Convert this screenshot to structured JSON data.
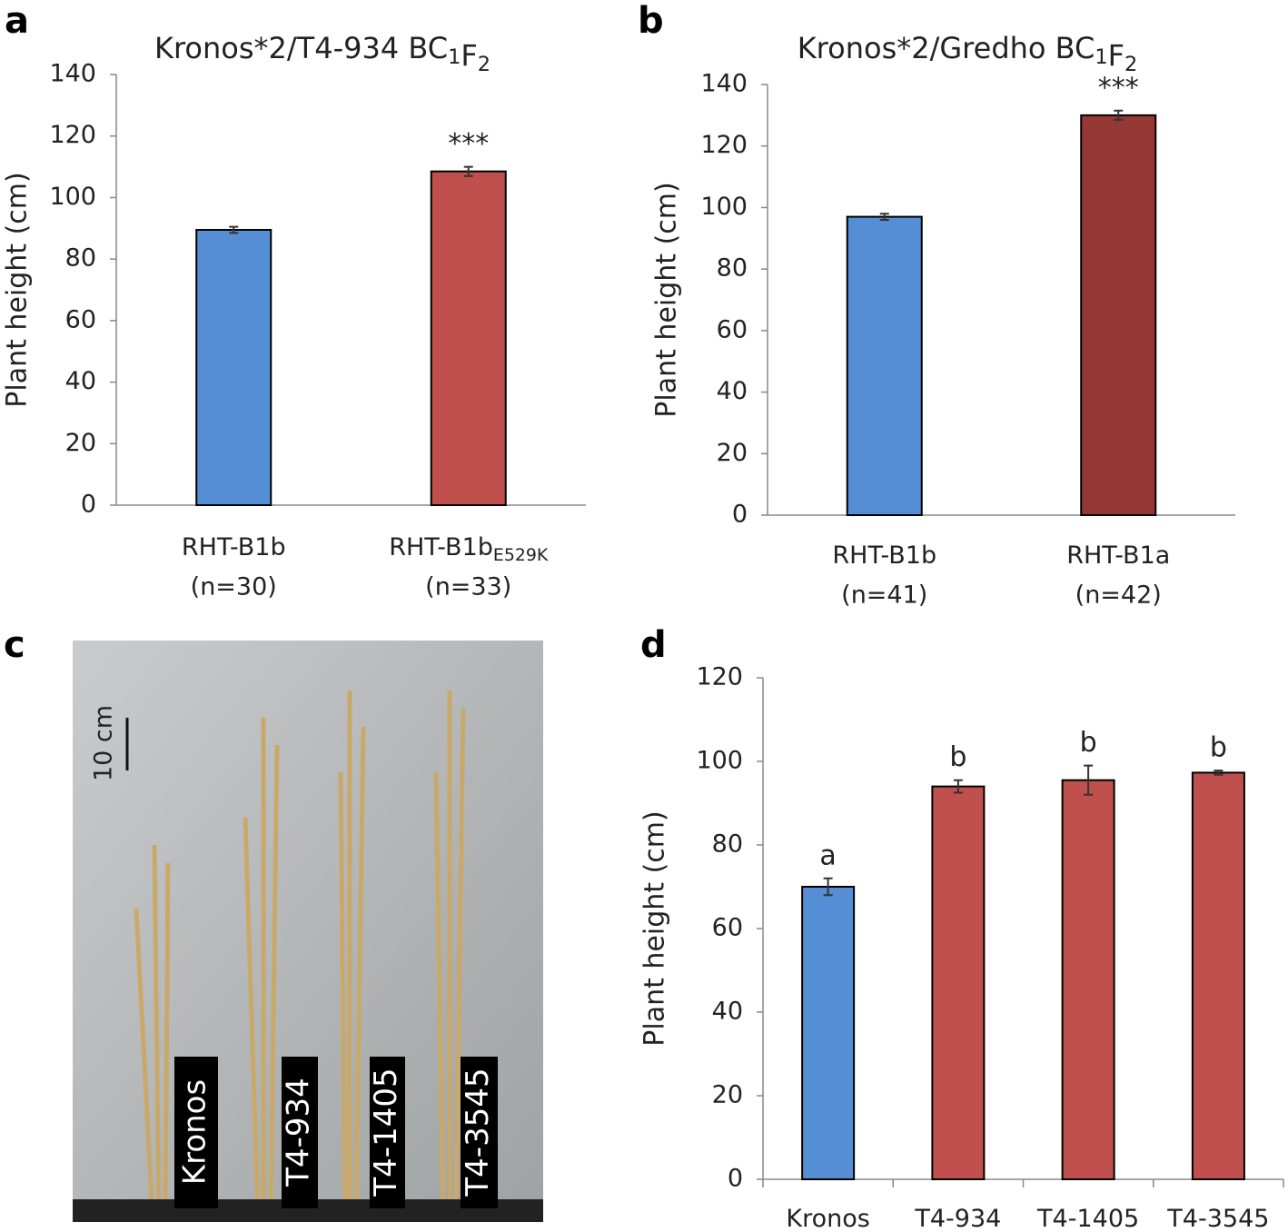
{
  "chart_data": [
    {
      "type": "bar",
      "panel_label": "a",
      "title": [
        "Kronos*2/T4-934 BC",
        {
          "sub": "1"
        },
        "F",
        {
          "sub": "2"
        }
      ],
      "y_label": "Plant height (cm)",
      "categories": [
        [
          "RHT-B1b"
        ],
        [
          "RHT-B1b",
          {
            "sub": "E529K"
          }
        ]
      ],
      "sample_sizes": [
        "(n=30)",
        "(n=33)"
      ],
      "values": [
        89.5,
        108.5
      ],
      "errors": [
        1,
        1.5
      ],
      "annotations": [
        null,
        "***"
      ],
      "colors": [
        "#558ed5",
        "#c0504d"
      ],
      "ylim": [
        0,
        140
      ],
      "yticks": [
        0,
        20,
        40,
        60,
        80,
        100,
        120,
        140
      ],
      "grid": false
    },
    {
      "type": "bar",
      "panel_label": "b",
      "title": [
        "Kronos*2/Gredho BC",
        {
          "sub": "1"
        },
        "F",
        {
          "sub": "2"
        }
      ],
      "y_label": "Plant height (cm)",
      "categories": [
        [
          "RHT-B1b"
        ],
        [
          "RHT-B1a"
        ]
      ],
      "sample_sizes": [
        "(n=41)",
        "(n=42)"
      ],
      "values": [
        97,
        130
      ],
      "errors": [
        1,
        1.5
      ],
      "annotations": [
        null,
        "***"
      ],
      "colors": [
        "#558ed5",
        "#953735"
      ],
      "ylim": [
        0,
        140
      ],
      "yticks": [
        0,
        20,
        40,
        60,
        80,
        100,
        120,
        140
      ],
      "grid": false
    },
    {
      "type": "bar",
      "panel_label": "d",
      "y_label": "Plant height (cm)",
      "categories": [
        [
          "Kronos"
        ],
        [
          "T4-934"
        ],
        [
          "T4-1405"
        ],
        [
          "T4-3545"
        ]
      ],
      "values": [
        70,
        94,
        95.5,
        97.3
      ],
      "errors": [
        2,
        1.5,
        3.5,
        0.5
      ],
      "annotations": [
        "a",
        "b",
        "b",
        "b"
      ],
      "colors": [
        "#558ed5",
        "#c0504d",
        "#c0504d",
        "#c0504d"
      ],
      "ylim": [
        0,
        120
      ],
      "yticks": [
        0,
        20,
        40,
        60,
        80,
        100,
        120
      ],
      "grid": false
    }
  ],
  "photo": {
    "panel_label": "c",
    "scale_bar": "10 cm",
    "labels": [
      "Kronos",
      "T4-934",
      "T4-1405",
      "T4-3545"
    ]
  }
}
